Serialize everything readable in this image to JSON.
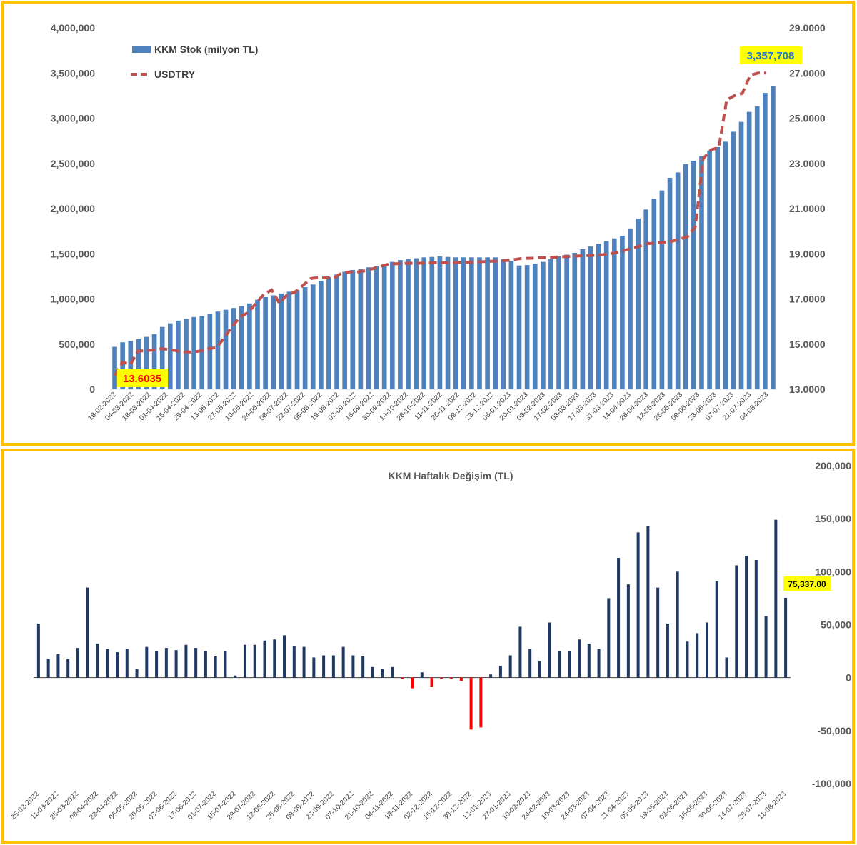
{
  "colors": {
    "frame": "#FFC000",
    "stock_bar": "#4F81BD",
    "usdtry_line": "#C0504D",
    "weekly_positive": "#1F3864",
    "weekly_negative": "#FF0000",
    "callout_bg": "#FFFF00"
  },
  "chart_data": [
    {
      "type": "bar",
      "title": "",
      "legend": [
        "KKM Stok (milyon TL)",
        "USDTRY"
      ],
      "legend_position": "top-left",
      "grid": false,
      "x_tick_labels": [
        "18-02-2022",
        "04-03-2022",
        "18-03-2022",
        "01-04-2022",
        "15-04-2022",
        "29-04-2022",
        "13-05-2022",
        "27-05-2022",
        "10-06-2022",
        "24-06-2022",
        "08-07-2022",
        "22-07-2022",
        "05-08-2022",
        "19-08-2022",
        "02-09-2022",
        "16-09-2022",
        "30-09-2022",
        "14-10-2022",
        "28-10-2022",
        "11-11-2022",
        "25-11-2022",
        "09-12-2022",
        "23-12-2022",
        "06-01-2023",
        "20-01-2023",
        "03-02-2023",
        "17-02-2023",
        "03-03-2023",
        "17-03-2023",
        "31-03-2023",
        "14-04-2023",
        "28-04-2023",
        "12-05-2023",
        "26-05-2023",
        "09-06-2023",
        "23-06-2023",
        "07-07-2023",
        "21-07-2023",
        "04-08-2023"
      ],
      "y_left": {
        "lim": [
          0,
          4000000
        ],
        "ticks": [
          "0",
          "500,000",
          "1,000,000",
          "1,500,000",
          "2,000,000",
          "2,500,000",
          "3,000,000",
          "3,500,000",
          "4,000,000"
        ]
      },
      "y_right": {
        "lim": [
          13,
          29
        ],
        "ticks": [
          "13.0000",
          "15.0000",
          "17.0000",
          "19.0000",
          "21.0000",
          "23.0000",
          "25.0000",
          "27.0000",
          "29.0000"
        ]
      },
      "series": [
        {
          "name": "KKM Stok (milyon TL)",
          "type": "bar",
          "axis": "left",
          "values": [
            470000,
            520000,
            535000,
            555000,
            580000,
            610000,
            690000,
            730000,
            760000,
            780000,
            800000,
            810000,
            830000,
            860000,
            880000,
            900000,
            920000,
            950000,
            990000,
            1020000,
            1040000,
            1060000,
            1080000,
            1100000,
            1130000,
            1160000,
            1200000,
            1240000,
            1270000,
            1300000,
            1320000,
            1330000,
            1350000,
            1360000,
            1380000,
            1410000,
            1430000,
            1440000,
            1450000,
            1460000,
            1465000,
            1470000,
            1465000,
            1460000,
            1460000,
            1460000,
            1460000,
            1460000,
            1460000,
            1440000,
            1420000,
            1370000,
            1375000,
            1390000,
            1410000,
            1440000,
            1470000,
            1490000,
            1510000,
            1550000,
            1580000,
            1610000,
            1640000,
            1670000,
            1700000,
            1780000,
            1890000,
            1990000,
            2110000,
            2200000,
            2340000,
            2400000,
            2490000,
            2530000,
            2580000,
            2640000,
            2680000,
            2740000,
            2850000,
            2960000,
            3070000,
            3130000,
            3280000,
            3357708
          ]
        },
        {
          "name": "USDTRY",
          "type": "line",
          "axis": "right",
          "values": [
            13.6035,
            14.2,
            14.1,
            14.7,
            14.7,
            14.75,
            14.8,
            14.75,
            14.7,
            14.65,
            14.65,
            14.7,
            14.8,
            14.85,
            15.3,
            15.8,
            16.2,
            16.4,
            16.8,
            17.2,
            17.4,
            16.8,
            17.2,
            17.3,
            17.6,
            17.9,
            17.95,
            17.93,
            17.95,
            18.15,
            18.2,
            18.2,
            18.25,
            18.35,
            18.45,
            18.55,
            18.56,
            18.57,
            18.58,
            18.58,
            18.6,
            18.6,
            18.6,
            18.6,
            18.62,
            18.62,
            18.63,
            18.65,
            18.67,
            18.68,
            18.7,
            18.75,
            18.8,
            18.8,
            18.82,
            18.82,
            18.85,
            18.87,
            18.88,
            18.9,
            18.92,
            18.93,
            18.95,
            19.0,
            19.05,
            19.15,
            19.25,
            19.35,
            19.45,
            19.47,
            19.5,
            19.55,
            19.65,
            19.75,
            20.2,
            23.2,
            23.6,
            23.7,
            25.8,
            26.0,
            26.1,
            26.9,
            27.0,
            27.0
          ]
        }
      ],
      "annotations": [
        {
          "text": "13.6035",
          "series": "USDTRY",
          "point": "first"
        },
        {
          "text": "3,357,708",
          "series": "KKM Stok (milyon TL)",
          "point": "last"
        }
      ]
    },
    {
      "type": "bar",
      "title": "KKM Haftalık Değişim (TL)",
      "grid": false,
      "x_tick_labels": [
        "25-02-2022",
        "11-03-2022",
        "25-03-2022",
        "08-04-2022",
        "22-04-2022",
        "06-05-2022",
        "20-05-2022",
        "03-06-2022",
        "17-06-2022",
        "01-07-2022",
        "15-07-2022",
        "29-07-2022",
        "12-08-2022",
        "26-08-2022",
        "09-09-2022",
        "23-09-2022",
        "07-10-2022",
        "21-10-2022",
        "04-11-2022",
        "18-11-2022",
        "02-12-2022",
        "16-12-2022",
        "30-12-2022",
        "13-01-2023",
        "27-01-2023",
        "10-02-2023",
        "24-02-2023",
        "10-03-2023",
        "24-03-2023",
        "07-04-2023",
        "21-04-2023",
        "05-05-2023",
        "19-05-2023",
        "02-06-2023",
        "16-06-2023",
        "30-06-2023",
        "14-07-2023",
        "28-07-2023",
        "11-08-2023"
      ],
      "y_right": {
        "lim": [
          -100000,
          200000
        ],
        "ticks": [
          "-100,000",
          "-50,000",
          "0",
          "50,000",
          "100,000",
          "150,000",
          "200,000"
        ]
      },
      "series": [
        {
          "name": "KKM Haftalık Değişim (TL)",
          "type": "bar",
          "values": [
            51000,
            18000,
            22000,
            18000,
            28000,
            85000,
            32000,
            27000,
            24000,
            27000,
            8000,
            29000,
            25000,
            28000,
            26000,
            31000,
            28000,
            25000,
            20000,
            25000,
            2000,
            31000,
            31000,
            35000,
            36000,
            40000,
            30000,
            29000,
            19000,
            21000,
            21000,
            29000,
            21000,
            20000,
            10000,
            8000,
            10000,
            -1000,
            -10000,
            5000,
            -9000,
            -1000,
            -1000,
            -3000,
            -49000,
            -47000,
            3000,
            11000,
            21000,
            48000,
            27000,
            16000,
            52000,
            25000,
            25000,
            36000,
            32000,
            27000,
            75000,
            113000,
            88000,
            137000,
            143000,
            85000,
            51000,
            100000,
            34000,
            42000,
            52000,
            91000,
            19000,
            106000,
            115000,
            111000,
            58000,
            149000,
            75337
          ]
        }
      ],
      "annotations": [
        {
          "text": "75,337.00",
          "point": "last"
        }
      ]
    }
  ]
}
